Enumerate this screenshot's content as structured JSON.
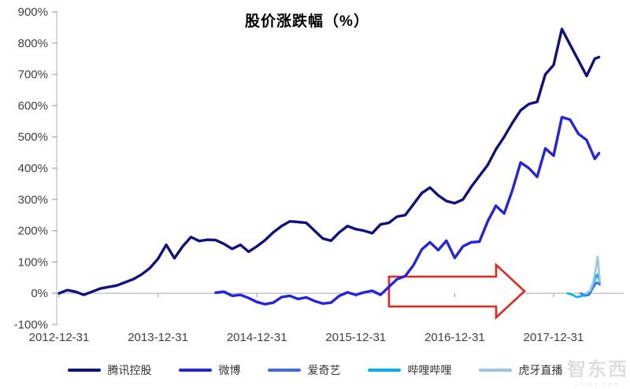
{
  "title": "股价涨跌幅（%）",
  "watermark": {
    "text": "智东西",
    "subtext": "zhidx.com"
  },
  "colors": {
    "axis": "#bfbfbf",
    "tick": "#a6a6a6",
    "label": "#404040",
    "arrow": "#e8251d"
  },
  "chart_data": {
    "type": "line",
    "title": "股价涨跌幅（%）",
    "xlabel": "",
    "ylabel": "",
    "x_tick_labels": [
      "2012-12-31",
      "2013-12-31",
      "2014-12-31",
      "2015-12-31",
      "2016-12-31",
      "2017-12-31"
    ],
    "y_tick_labels": [
      "900%",
      "800%",
      "700%",
      "600%",
      "500%",
      "400%",
      "300%",
      "200%",
      "100%",
      "0%",
      "-100%"
    ],
    "ylim": [
      -100,
      900
    ],
    "y_unit": "percent",
    "x_unit": "months since 2012-12-31",
    "grid": "baseline only (0% gray line)",
    "legend_position": "bottom",
    "series": [
      {
        "id": "tencent",
        "name": "腾讯控股",
        "color": "#101080",
        "width": 3.4,
        "points": [
          [
            0,
            0
          ],
          [
            1,
            10
          ],
          [
            2,
            5
          ],
          [
            3,
            -5
          ],
          [
            4,
            5
          ],
          [
            5,
            15
          ],
          [
            6,
            20
          ],
          [
            7,
            25
          ],
          [
            8,
            35
          ],
          [
            9,
            45
          ],
          [
            10,
            60
          ],
          [
            11,
            80
          ],
          [
            12,
            110
          ],
          [
            13,
            155
          ],
          [
            14,
            112
          ],
          [
            15,
            150
          ],
          [
            16,
            180
          ],
          [
            17,
            167
          ],
          [
            18,
            171
          ],
          [
            19,
            170
          ],
          [
            20,
            158
          ],
          [
            21,
            142
          ],
          [
            22,
            155
          ],
          [
            23,
            133
          ],
          [
            24,
            150
          ],
          [
            25,
            170
          ],
          [
            26,
            195
          ],
          [
            27,
            215
          ],
          [
            28,
            230
          ],
          [
            29,
            228
          ],
          [
            30,
            225
          ],
          [
            31,
            200
          ],
          [
            32,
            175
          ],
          [
            33,
            168
          ],
          [
            34,
            195
          ],
          [
            35,
            215
          ],
          [
            36,
            205
          ],
          [
            37,
            200
          ],
          [
            38,
            192
          ],
          [
            39,
            220
          ],
          [
            40,
            225
          ],
          [
            41,
            245
          ],
          [
            42,
            250
          ],
          [
            43,
            285
          ],
          [
            44,
            320
          ],
          [
            45,
            338
          ],
          [
            46,
            313
          ],
          [
            47,
            295
          ],
          [
            48,
            288
          ],
          [
            49,
            300
          ],
          [
            50,
            340
          ],
          [
            51,
            375
          ],
          [
            52,
            410
          ],
          [
            53,
            460
          ],
          [
            54,
            500
          ],
          [
            55,
            545
          ],
          [
            56,
            585
          ],
          [
            57,
            605
          ],
          [
            58,
            612
          ],
          [
            59,
            700
          ],
          [
            60,
            730
          ],
          [
            61,
            845
          ],
          [
            62,
            795
          ],
          [
            63,
            745
          ],
          [
            64,
            695
          ],
          [
            65,
            750
          ],
          [
            65.5,
            755
          ]
        ]
      },
      {
        "id": "weibo",
        "name": "微博",
        "color": "#2323e0",
        "width": 3.4,
        "points": [
          [
            19,
            2
          ],
          [
            20,
            5
          ],
          [
            21,
            -8
          ],
          [
            22,
            -5
          ],
          [
            23,
            -15
          ],
          [
            24,
            -28
          ],
          [
            25,
            -35
          ],
          [
            26,
            -30
          ],
          [
            27,
            -12
          ],
          [
            28,
            -8
          ],
          [
            29,
            -18
          ],
          [
            30,
            -13
          ],
          [
            31,
            -25
          ],
          [
            32,
            -33
          ],
          [
            33,
            -30
          ],
          [
            34,
            -8
          ],
          [
            35,
            3
          ],
          [
            36,
            -5
          ],
          [
            37,
            3
          ],
          [
            38,
            8
          ],
          [
            39,
            -5
          ],
          [
            40,
            20
          ],
          [
            41,
            45
          ],
          [
            42,
            55
          ],
          [
            43,
            90
          ],
          [
            44,
            140
          ],
          [
            45,
            163
          ],
          [
            46,
            138
          ],
          [
            47,
            168
          ],
          [
            48,
            113
          ],
          [
            49,
            150
          ],
          [
            50,
            163
          ],
          [
            51,
            165
          ],
          [
            52,
            230
          ],
          [
            53,
            280
          ],
          [
            54,
            255
          ],
          [
            55,
            330
          ],
          [
            56,
            418
          ],
          [
            57,
            400
          ],
          [
            58,
            372
          ],
          [
            59,
            463
          ],
          [
            60,
            440
          ],
          [
            61,
            563
          ],
          [
            62,
            555
          ],
          [
            63,
            510
          ],
          [
            64,
            490
          ],
          [
            65,
            430
          ],
          [
            65.5,
            448
          ]
        ]
      },
      {
        "id": "iqiyi",
        "name": "爱奇艺",
        "color": "#4169e1",
        "width": 2.6,
        "points": [
          [
            63.3,
            0
          ],
          [
            63.8,
            -8
          ],
          [
            64.3,
            -5
          ],
          [
            64.8,
            18
          ],
          [
            65.2,
            35
          ],
          [
            65.6,
            28
          ]
        ]
      },
      {
        "id": "bilibili",
        "name": "哔哩哔哩",
        "color": "#00b0f0",
        "width": 2.6,
        "points": [
          [
            61.7,
            0
          ],
          [
            62.2,
            -4
          ],
          [
            62.8,
            -12
          ],
          [
            63.4,
            -9
          ],
          [
            64,
            -4
          ],
          [
            64.6,
            12
          ],
          [
            65,
            45
          ],
          [
            65.3,
            60
          ],
          [
            65.6,
            35
          ]
        ]
      },
      {
        "id": "huya",
        "name": "虎牙直播",
        "color": "#9dc3e6",
        "width": 2.6,
        "points": [
          [
            64,
            0
          ],
          [
            64.4,
            8
          ],
          [
            64.8,
            35
          ],
          [
            65.1,
            75
          ],
          [
            65.35,
            117
          ],
          [
            65.6,
            38
          ]
        ]
      }
    ],
    "annotation": {
      "type": "right-arrow-outline",
      "color": "#e8251d",
      "note": "hollow red arrow pointing right, straddling the 0% baseline between 2016 and 2017"
    }
  }
}
